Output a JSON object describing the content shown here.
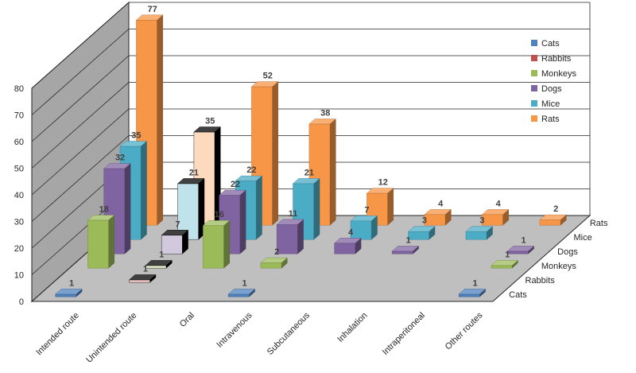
{
  "chart_data": {
    "type": "bar",
    "categories": [
      "Intended route",
      "Unintended route",
      "Oral",
      "Intravenous",
      "Subcutaneous",
      "Inhalation",
      "Intraperitoneal",
      "Other routes"
    ],
    "series": [
      {
        "name": "Cats",
        "color": "#4f81bd",
        "values": [
          1,
          null,
          null,
          1,
          null,
          null,
          null,
          1
        ]
      },
      {
        "name": "Rabbits",
        "color": "#c0504d",
        "values": [
          null,
          1,
          null,
          null,
          null,
          null,
          null,
          null
        ]
      },
      {
        "name": "Monkeys",
        "color": "#9bbb59",
        "values": [
          18,
          1,
          16,
          2,
          null,
          null,
          null,
          1
        ]
      },
      {
        "name": "Dogs",
        "color": "#8064a2",
        "values": [
          32,
          7,
          22,
          11,
          4,
          1,
          null,
          1
        ]
      },
      {
        "name": "Mice",
        "color": "#4bacc6",
        "values": [
          35,
          21,
          22,
          21,
          7,
          3,
          3,
          null
        ]
      },
      {
        "name": "Rats",
        "color": "#f79646",
        "values": [
          77,
          35,
          52,
          38,
          12,
          4,
          4,
          2
        ]
      }
    ],
    "title": "",
    "xlabel": "",
    "ylabel": "",
    "ylim": [
      0,
      80
    ],
    "yticks": [
      "0",
      "10",
      "20",
      "30",
      "40",
      "50",
      "60",
      "70",
      "80"
    ],
    "depth_labels": [
      "Cats",
      "Rabbits",
      "Monkeys",
      "Dogs",
      "Mice",
      "Rats"
    ],
    "grid": true,
    "legend": "right",
    "pale_bars": [
      "Unintended route"
    ]
  }
}
